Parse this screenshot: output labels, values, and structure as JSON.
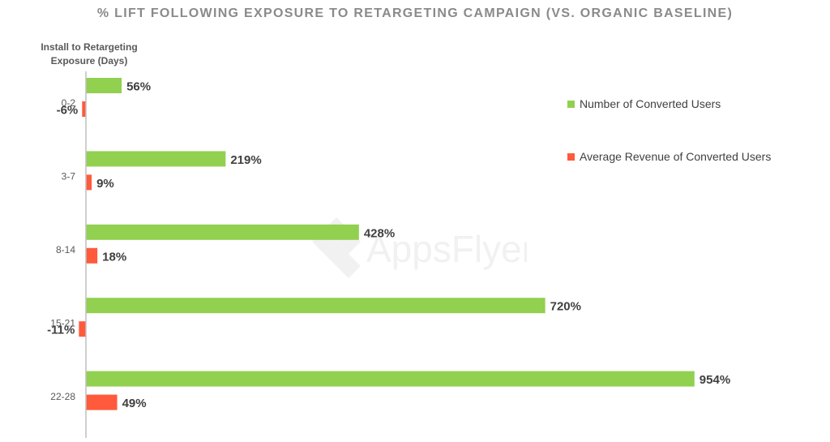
{
  "chart_data": {
    "type": "bar",
    "orientation": "horizontal",
    "title": "% LIFT FOLLOWING EXPOSURE TO RETARGETING CAMPAIGN (VS. ORGANIC BASELINE)",
    "ylabel": "Install to Retargeting Exposure (Days)",
    "xlabel": "",
    "categories": [
      "0-2",
      "3-7",
      "8-14",
      "15-21",
      "22-28"
    ],
    "series": [
      {
        "name": "Number of Converted Users",
        "values": [
          56,
          219,
          428,
          720,
          954
        ],
        "labels": [
          "56%",
          "219%",
          "428%",
          "720%",
          "954%"
        ],
        "color": "#92d050"
      },
      {
        "name": "Average Revenue of Converted Users",
        "values": [
          -6,
          9,
          18,
          -11,
          49
        ],
        "labels": [
          "-6%",
          "9%",
          "18%",
          "-11%",
          "49%"
        ],
        "color": "#ff5a3c"
      }
    ],
    "xlim": [
      -11,
      1010
    ],
    "grid": false,
    "legend_position": "right"
  },
  "watermark": "AppsFlyer"
}
